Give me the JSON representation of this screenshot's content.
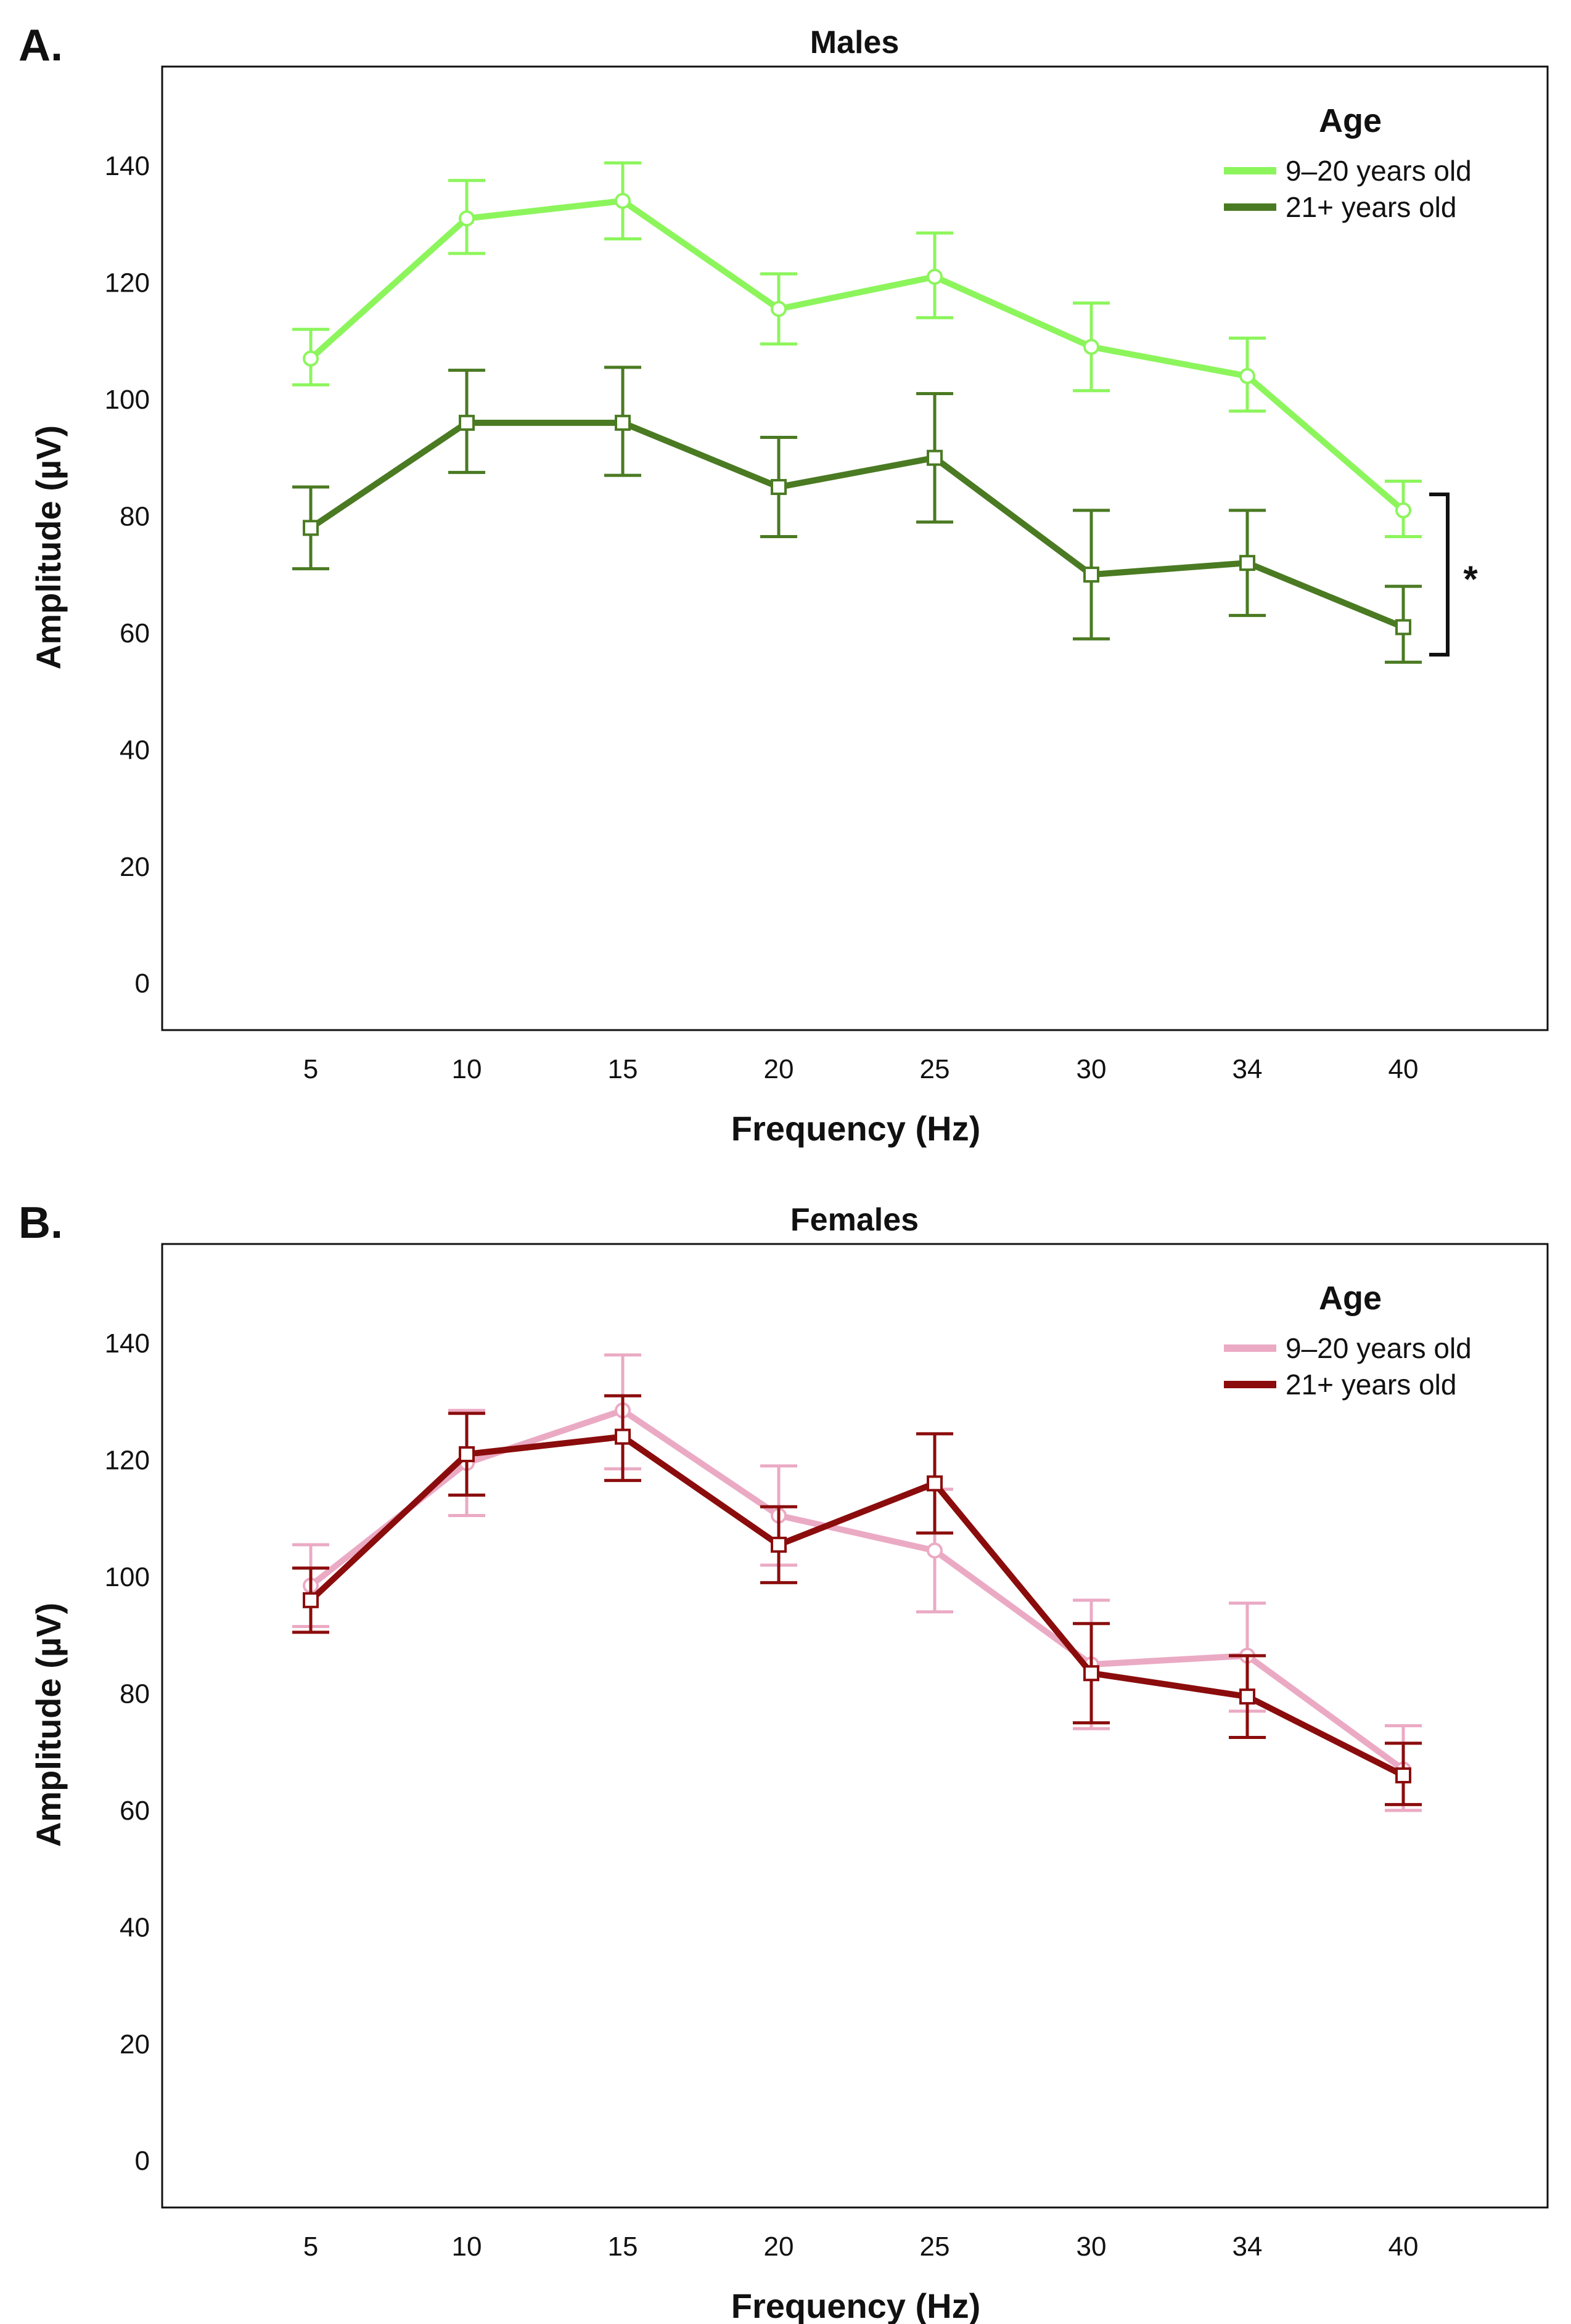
{
  "colors": {
    "males_young": "#8cf55c",
    "males_old": "#4a7a22",
    "females_young": "#ebaac4",
    "females_old": "#8b0c0c",
    "axis": "#111111"
  },
  "chart_data": [
    {
      "panel_label": "A.",
      "type": "line",
      "title": "Males",
      "xlabel": "Frequency (Hz)",
      "ylabel": "Amplitude (µV)",
      "categories": [
        "5",
        "10",
        "15",
        "20",
        "25",
        "30",
        "34",
        "40"
      ],
      "yticks": [
        0,
        20,
        40,
        60,
        80,
        100,
        120,
        140
      ],
      "ylim": [
        -8,
        157
      ],
      "legend_title": "Age",
      "legend_position": "top-right",
      "significance": "*",
      "series": [
        {
          "name": "9–20 years old",
          "color_key": "males_young",
          "marker": "circle",
          "values": [
            107,
            131,
            134,
            115.5,
            121,
            109,
            104,
            81
          ],
          "err_low": [
            102.5,
            125,
            127.5,
            109.5,
            114,
            101.5,
            98,
            76.5
          ],
          "err_high": [
            112,
            137.5,
            140.5,
            121.5,
            128.5,
            116.5,
            110.5,
            86
          ]
        },
        {
          "name": "21+ years old",
          "color_key": "males_old",
          "marker": "square",
          "values": [
            78,
            96,
            96,
            85,
            90,
            70,
            72,
            61
          ],
          "err_low": [
            71,
            87.5,
            87,
            76.5,
            79,
            59,
            63,
            55
          ],
          "err_high": [
            85,
            105,
            105.5,
            93.5,
            101,
            81,
            81,
            68
          ]
        }
      ]
    },
    {
      "panel_label": "B.",
      "type": "line",
      "title": "Females",
      "xlabel": "Frequency (Hz)",
      "ylabel": "Amplitude (µV)",
      "categories": [
        "5",
        "10",
        "15",
        "20",
        "25",
        "30",
        "34",
        "40"
      ],
      "yticks": [
        0,
        20,
        40,
        60,
        80,
        100,
        120,
        140
      ],
      "ylim": [
        -8,
        157
      ],
      "legend_title": "Age",
      "legend_position": "top-right",
      "series": [
        {
          "name": "9–20 years old",
          "color_key": "females_young",
          "marker": "circle",
          "values": [
            98.5,
            119.5,
            128.5,
            110.5,
            104.5,
            85,
            86.5,
            67
          ],
          "err_low": [
            91.5,
            110.5,
            118.5,
            102,
            94,
            74,
            77,
            60
          ],
          "err_high": [
            105.5,
            128.5,
            138,
            119,
            115,
            96,
            95.5,
            74.5
          ]
        },
        {
          "name": "21+ years old",
          "color_key": "females_old",
          "marker": "square",
          "values": [
            96,
            121,
            124,
            105.5,
            116,
            83.5,
            79.5,
            66
          ],
          "err_low": [
            90.5,
            114,
            116.5,
            99,
            107.5,
            75,
            72.5,
            61
          ],
          "err_high": [
            101.5,
            128,
            131,
            112,
            124.5,
            92,
            86.5,
            71.5
          ]
        }
      ]
    }
  ]
}
